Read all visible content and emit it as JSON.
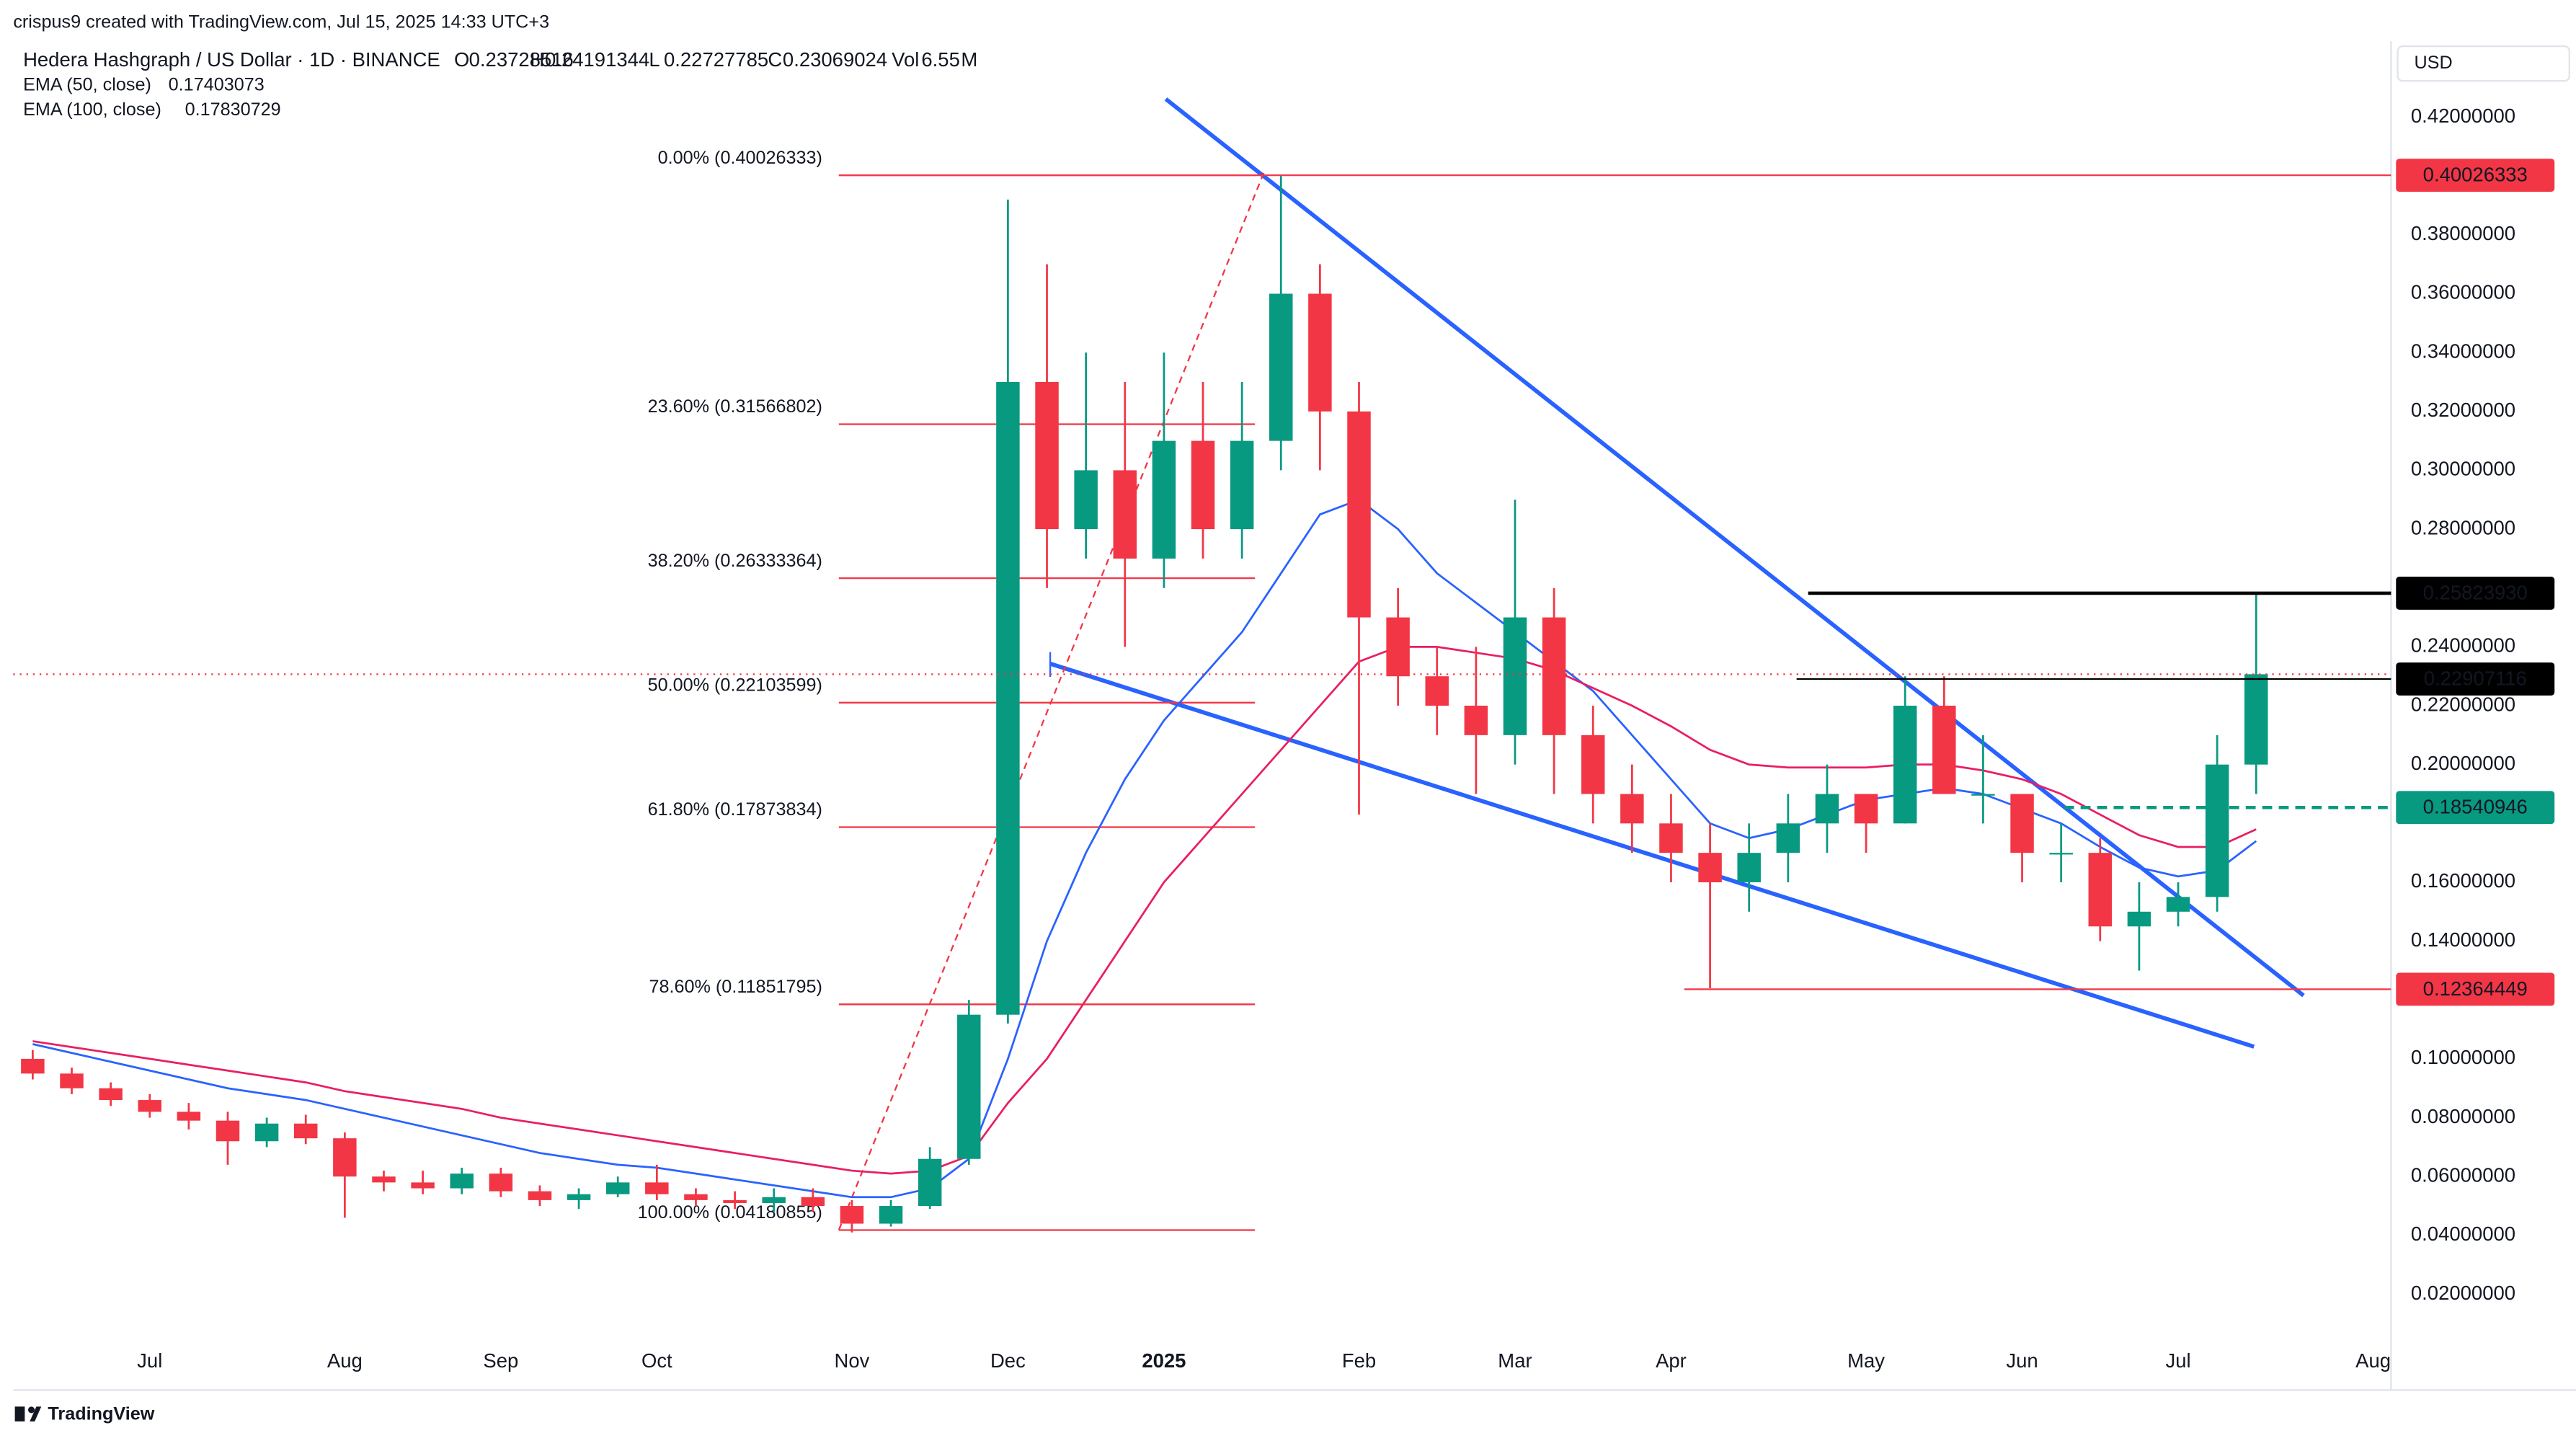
{
  "chart_data": {
    "type": "candlestick",
    "credit": "crispus9 created with TradingView.com, Jul 15, 2025 14:33 UTC+3",
    "title": "Hedera Hashgraph / US Dollar · 1D · BINANCE",
    "legend_ohlc": [
      {
        "label": "O",
        "value": 0.23728516
      },
      {
        "label": "H",
        "value": 0.24191344
      },
      {
        "label": "L",
        "value": 0.22727785
      },
      {
        "label": "C",
        "value": 0.23069024
      }
    ],
    "volume": {
      "label": "Vol",
      "value": 6.55,
      "unit": "M"
    },
    "currency": "USD",
    "watermark": "TradingView",
    "up_color": "#089981",
    "down_color": "#f23645",
    "categories": [
      null,
      null,
      null,
      "Jul",
      null,
      null,
      null,
      null,
      "Aug",
      null,
      null,
      null,
      "Sep",
      null,
      null,
      null,
      "Oct",
      null,
      null,
      null,
      null,
      "Nov",
      null,
      null,
      null,
      "Dec",
      null,
      null,
      null,
      "2025",
      null,
      null,
      null,
      null,
      "Feb",
      null,
      null,
      null,
      "Mar",
      null,
      null,
      null,
      "Apr",
      null,
      null,
      null,
      null,
      "May",
      null,
      null,
      null,
      "Jun",
      null,
      null,
      null,
      "Jul",
      null,
      null,
      null,
      null,
      "Aug"
    ],
    "ohlc": {
      "open": [
        0.1,
        0.095,
        0.09,
        0.086,
        0.082,
        0.079,
        0.072,
        0.078,
        0.073,
        0.06,
        0.058,
        0.056,
        0.061,
        0.055,
        0.052,
        0.054,
        0.058,
        0.054,
        0.052,
        0.051,
        0.053,
        0.05,
        0.044,
        0.05,
        0.066,
        0.115,
        0.33,
        0.28,
        0.3,
        0.27,
        0.31,
        0.28,
        0.31,
        0.36,
        0.32,
        0.25,
        0.23,
        0.22,
        0.21,
        0.25,
        0.21,
        0.19,
        0.18,
        0.17,
        0.16,
        0.17,
        0.18,
        0.19,
        0.18,
        0.22,
        0.19,
        0.19,
        0.17,
        0.17,
        0.145,
        0.15,
        0.155,
        0.2,
        null,
        null,
        null
      ],
      "high": [
        0.103,
        0.097,
        0.092,
        0.088,
        0.085,
        0.082,
        0.08,
        0.081,
        0.075,
        0.062,
        0.062,
        0.063,
        0.063,
        0.057,
        0.056,
        0.06,
        0.064,
        0.056,
        0.055,
        0.056,
        0.056,
        0.052,
        0.052,
        0.07,
        0.12,
        0.392,
        0.37,
        0.34,
        0.33,
        0.34,
        0.33,
        0.33,
        0.4,
        0.37,
        0.33,
        0.26,
        0.24,
        0.24,
        0.29,
        0.26,
        0.22,
        0.2,
        0.19,
        0.18,
        0.18,
        0.19,
        0.2,
        0.19,
        0.23,
        0.23,
        0.21,
        0.19,
        0.18,
        0.175,
        0.16,
        0.16,
        0.21,
        0.258,
        null,
        null,
        null
      ],
      "low": [
        0.093,
        0.088,
        0.084,
        0.08,
        0.076,
        0.064,
        0.07,
        0.071,
        0.046,
        0.055,
        0.054,
        0.054,
        0.053,
        0.05,
        0.049,
        0.053,
        0.052,
        0.05,
        0.049,
        0.048,
        0.048,
        0.041,
        0.043,
        0.049,
        0.064,
        0.112,
        0.26,
        0.27,
        0.24,
        0.26,
        0.27,
        0.27,
        0.3,
        0.3,
        0.183,
        0.22,
        0.21,
        0.19,
        0.2,
        0.19,
        0.18,
        0.17,
        0.16,
        0.124,
        0.15,
        0.16,
        0.17,
        0.17,
        0.18,
        0.19,
        0.18,
        0.16,
        0.16,
        0.14,
        0.13,
        0.145,
        0.15,
        0.19,
        null,
        null,
        null
      ],
      "close": [
        0.095,
        0.09,
        0.086,
        0.082,
        0.079,
        0.072,
        0.078,
        0.073,
        0.06,
        0.058,
        0.056,
        0.061,
        0.055,
        0.052,
        0.054,
        0.058,
        0.054,
        0.052,
        0.051,
        0.053,
        0.05,
        0.044,
        0.05,
        0.066,
        0.115,
        0.33,
        0.28,
        0.3,
        0.27,
        0.31,
        0.28,
        0.31,
        0.36,
        0.32,
        0.25,
        0.23,
        0.22,
        0.21,
        0.25,
        0.21,
        0.19,
        0.18,
        0.17,
        0.16,
        0.17,
        0.18,
        0.19,
        0.18,
        0.22,
        0.19,
        0.19,
        0.17,
        0.17,
        0.145,
        0.15,
        0.155,
        0.2,
        0.23069024,
        null,
        null,
        null
      ]
    },
    "series": [
      {
        "name": "EMA (50, close)",
        "legend_value": 0.17403073,
        "color": "#2962ff",
        "values": [
          0.105,
          0.102,
          0.099,
          0.096,
          0.093,
          0.09,
          0.088,
          0.086,
          0.083,
          0.08,
          0.077,
          0.074,
          0.071,
          0.068,
          0.066,
          0.064,
          0.063,
          0.061,
          0.059,
          0.057,
          0.055,
          0.053,
          0.053,
          0.056,
          0.066,
          0.1,
          0.14,
          0.17,
          0.195,
          0.215,
          0.23,
          0.245,
          0.265,
          0.285,
          0.29,
          0.28,
          0.265,
          0.255,
          0.245,
          0.235,
          0.225,
          0.21,
          0.195,
          0.18,
          0.175,
          0.178,
          0.183,
          0.188,
          0.19,
          0.192,
          0.19,
          0.185,
          0.18,
          0.172,
          0.165,
          0.162,
          0.164,
          0.174,
          null,
          null,
          null
        ]
      },
      {
        "name": "EMA (100, close)",
        "legend_value": 0.17830729,
        "color": "#e91e63",
        "values": [
          0.106,
          0.104,
          0.102,
          0.1,
          0.098,
          0.096,
          0.094,
          0.092,
          0.089,
          0.087,
          0.085,
          0.083,
          0.08,
          0.078,
          0.076,
          0.074,
          0.072,
          0.07,
          0.068,
          0.066,
          0.064,
          0.062,
          0.061,
          0.062,
          0.067,
          0.085,
          0.1,
          0.12,
          0.14,
          0.16,
          0.175,
          0.19,
          0.205,
          0.22,
          0.235,
          0.24,
          0.24,
          0.238,
          0.236,
          0.232,
          0.226,
          0.22,
          0.213,
          0.205,
          0.2,
          0.199,
          0.199,
          0.199,
          0.2,
          0.2,
          0.198,
          0.195,
          0.19,
          0.183,
          0.176,
          0.172,
          0.172,
          0.178,
          null,
          null,
          null
        ]
      }
    ],
    "ylim": [
      0.005,
      0.445
    ],
    "yticks": [
      {
        "value": 0.02,
        "label": "0.02000000"
      },
      {
        "value": 0.04,
        "label": "0.04000000"
      },
      {
        "value": 0.06,
        "label": "0.06000000"
      },
      {
        "value": 0.08,
        "label": "0.08000000"
      },
      {
        "value": 0.1,
        "label": "0.10000000"
      },
      {
        "value": 0.14,
        "label": "0.14000000"
      },
      {
        "value": 0.16,
        "label": "0.16000000"
      },
      {
        "value": 0.2,
        "label": "0.20000000"
      },
      {
        "value": 0.22,
        "label": "0.22000000"
      },
      {
        "value": 0.24,
        "label": "0.24000000"
      },
      {
        "value": 0.28,
        "label": "0.28000000"
      },
      {
        "value": 0.3,
        "label": "0.30000000"
      },
      {
        "value": 0.32,
        "label": "0.32000000"
      },
      {
        "value": 0.34,
        "label": "0.34000000"
      },
      {
        "value": 0.36,
        "label": "0.36000000"
      },
      {
        "value": 0.38,
        "label": "0.38000000"
      },
      {
        "value": 0.42,
        "label": "0.42000000"
      }
    ],
    "grid": false,
    "fibonacci": [
      {
        "label": "0.00% (0.40026333)",
        "value": 0.40026333
      },
      {
        "label": "23.60% (0.31566802)",
        "value": 0.31566802
      },
      {
        "label": "38.20% (0.26333364)",
        "value": 0.26333364
      },
      {
        "label": "50.00% (0.22103599)",
        "value": 0.22103599
      },
      {
        "label": "61.80% (0.17873834)",
        "value": 0.17873834
      },
      {
        "label": "78.60% (0.11851795)",
        "value": 0.11851795
      },
      {
        "label": "100.00% (0.04180855)",
        "value": 0.04180855
      }
    ],
    "levels": [
      {
        "value": 0.40026333,
        "label": "0.40026333",
        "color": "#f23645"
      },
      {
        "value": 0.2582393,
        "label": "0.25823930",
        "color": "#000000"
      },
      {
        "value": 0.22907116,
        "label": "0.22907116",
        "color": "#000000"
      },
      {
        "value": 0.18540946,
        "label": "0.18540946",
        "color": "#089981"
      },
      {
        "value": 0.12364449,
        "label": "0.12364449",
        "color": "#f23645"
      }
    ]
  }
}
